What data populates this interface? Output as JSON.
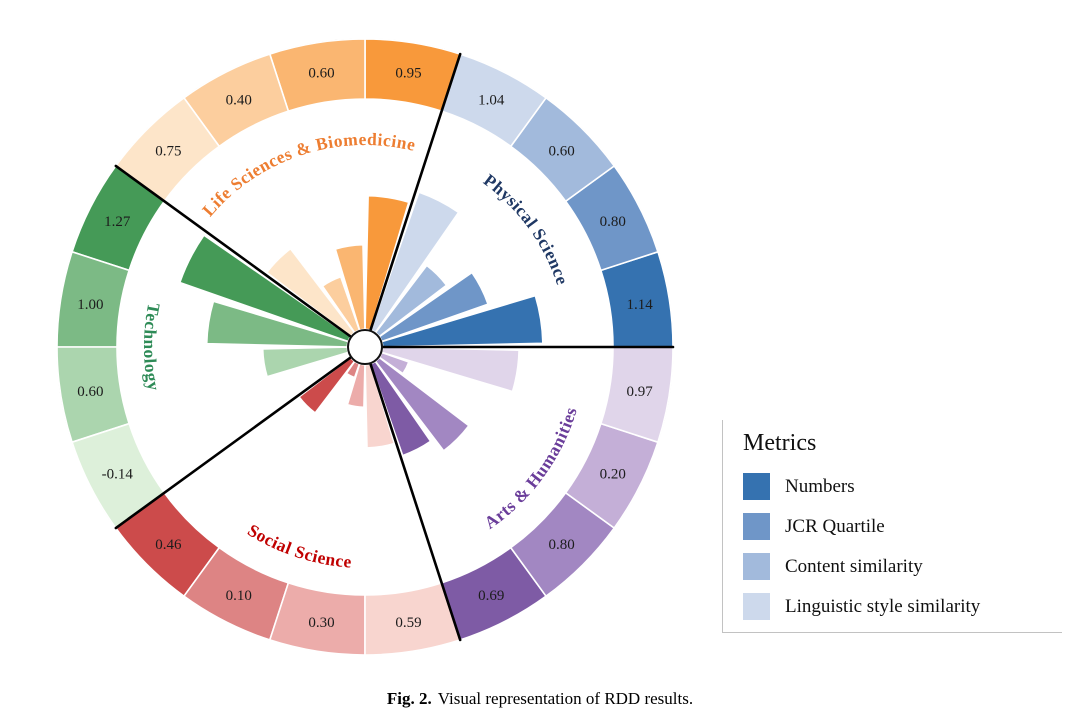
{
  "legend": {
    "title": "Metrics",
    "items": [
      {
        "label": "Numbers",
        "color": "#3572b0"
      },
      {
        "label": "JCR Quartile",
        "color": "#6f96c8"
      },
      {
        "label": "Content similarity",
        "color": "#a2badc"
      },
      {
        "label": "Linguistic style similarity",
        "color": "#cdd9ec"
      }
    ]
  },
  "caption": {
    "label": "Fig. 2.",
    "text": "Visual representation of RDD results."
  },
  "chart_data": {
    "type": "bar",
    "variant": "polar_rose",
    "title": "Visual representation of RDD results",
    "metrics": [
      "Numbers",
      "JCR Quartile",
      "Content similarity",
      "Linguistic style similarity"
    ],
    "sector_span_deg": 72,
    "metric_span_deg": 18,
    "start_angle_deg": 0,
    "order": "counterclockwise from east; within each sector Numbers (darkest) first",
    "sectors": [
      {
        "name": "Physical Science",
        "label_color": "#1f3864",
        "shades": [
          "#3572b0",
          "#6f96c8",
          "#a2badc",
          "#cdd9ec"
        ],
        "values": [
          1.14,
          0.8,
          0.6,
          1.04
        ]
      },
      {
        "name": "Life Sciences & Biomedicine",
        "label_color": "#ed7d31",
        "shades": [
          "#f8993b",
          "#fab671",
          "#fcce9e",
          "#fde5c9"
        ],
        "values": [
          0.95,
          0.6,
          0.4,
          0.75
        ]
      },
      {
        "name": "Technology",
        "label_color": "#2e8b57",
        "shades": [
          "#459a57",
          "#7cba85",
          "#abd5ae",
          "#ddf0da"
        ],
        "values": [
          1.27,
          1.0,
          0.6,
          -0.14
        ]
      },
      {
        "name": "Social Science",
        "label_color": "#c00000",
        "shades": [
          "#cc4b4b",
          "#dd8484",
          "#ecacaa",
          "#f8d5cf"
        ],
        "values": [
          0.46,
          0.1,
          0.3,
          0.59
        ]
      },
      {
        "name": "Arts & Humanities",
        "label_color": "#6a3d9a",
        "shades": [
          "#7e5ba5",
          "#a287c2",
          "#c4afd7",
          "#e0d5ea"
        ],
        "values": [
          0.69,
          0.8,
          0.2,
          0.97
        ]
      }
    ],
    "value_labels_on_outer_ring": true,
    "center_hole": true,
    "grid": false,
    "legend_position": "right"
  }
}
